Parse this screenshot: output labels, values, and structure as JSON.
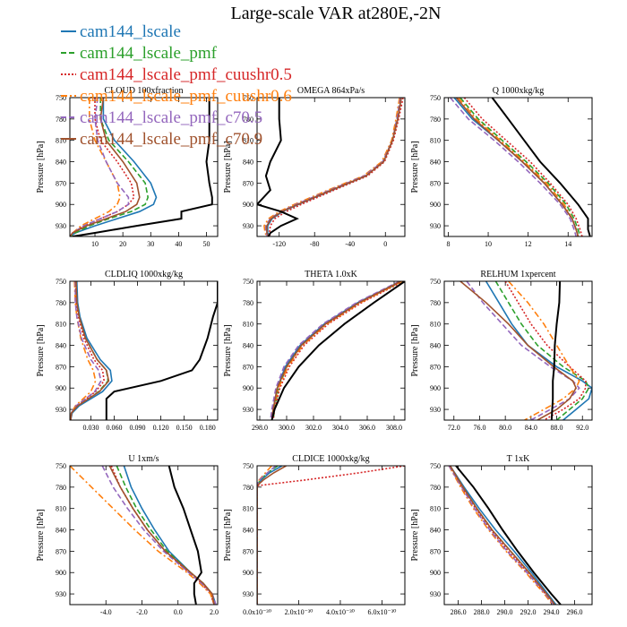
{
  "figure": {
    "title": "Large-scale VAR at280E,-2N",
    "ylabel": "Pressure [hPa]",
    "yticks": [
      750,
      780,
      810,
      840,
      870,
      900,
      930
    ],
    "ylim": [
      750,
      945
    ]
  },
  "legend": [
    {
      "name": "cam144_lscale",
      "color": "#1f77b4",
      "style": "solid"
    },
    {
      "name": "cam144_lscale_pmf",
      "color": "#2ca02c",
      "style": "dashed"
    },
    {
      "name": "cam144_lscale_pmf_cuushr0.5",
      "color": "#d62728",
      "style": "dotted"
    },
    {
      "name": "cam144_lscale_pmf_cuushr0.6",
      "color": "#ff7f0e",
      "style": "dashdot"
    },
    {
      "name": "cam144_lscale_pmf_c70.5",
      "color": "#9467bd",
      "style": "dashed"
    },
    {
      "name": "cam144_lscale_pmf_c70.9",
      "color": "#a0522d",
      "style": "solid"
    }
  ],
  "obs_color": "#000000",
  "chart_data": [
    {
      "type": "line",
      "title": "CLOUD  100xfraction",
      "xlim": [
        1,
        54
      ],
      "xticks": [
        {
          "v": 10,
          "label": "10"
        },
        {
          "v": 20,
          "label": "20"
        },
        {
          "v": 30,
          "label": "30"
        },
        {
          "v": 40,
          "label": "40"
        },
        {
          "v": 50,
          "label": "50"
        }
      ],
      "p": [
        750,
        780,
        810,
        840,
        870,
        890,
        900,
        910,
        920,
        930,
        940,
        945
      ],
      "obs": [
        51,
        51,
        51,
        50,
        51,
        52,
        52,
        41,
        41,
        25,
        10,
        2
      ],
      "series": [
        [
          13,
          13,
          17,
          24,
          30,
          32,
          31,
          26,
          18,
          10,
          3,
          1
        ],
        [
          12,
          12,
          15,
          22,
          28,
          29,
          28,
          23,
          15,
          8,
          3,
          1
        ],
        [
          10,
          10,
          12,
          18,
          23,
          24,
          22,
          18,
          12,
          6,
          2,
          1
        ],
        [
          8,
          8,
          10,
          14,
          18,
          19,
          18,
          15,
          10,
          5,
          2,
          1
        ],
        [
          11,
          10,
          11,
          14,
          18,
          22,
          22,
          18,
          12,
          6,
          2,
          1
        ],
        [
          13,
          12,
          14,
          20,
          25,
          26,
          25,
          21,
          14,
          7,
          2,
          1
        ]
      ]
    },
    {
      "type": "line",
      "title": "OMEGA  864xPa/s",
      "xlim": [
        -145,
        22
      ],
      "xticks": [
        {
          "v": -120,
          "label": "-120"
        },
        {
          "v": -80,
          "label": "-80"
        },
        {
          "v": -40,
          "label": "-40"
        },
        {
          "v": 0,
          "label": "0"
        }
      ],
      "p": [
        750,
        780,
        810,
        840,
        860,
        880,
        900,
        910,
        920,
        930,
        940,
        945
      ],
      "obs": [
        -120,
        -120,
        -118,
        -130,
        -135,
        -130,
        -145,
        -118,
        -100,
        -118,
        -130,
        -132
      ],
      "series": [
        [
          18,
          14,
          8,
          -2,
          -22,
          -60,
          -98,
          -116,
          -128,
          -133,
          -133,
          -131
        ],
        [
          17,
          13,
          8,
          -3,
          -23,
          -62,
          -100,
          -118,
          -130,
          -135,
          -135,
          -133
        ],
        [
          20,
          15,
          9,
          -1,
          -20,
          -58,
          -95,
          -112,
          -125,
          -130,
          -131,
          -130
        ],
        [
          16,
          12,
          7,
          -4,
          -25,
          -65,
          -103,
          -120,
          -132,
          -137,
          -136,
          -134
        ],
        [
          17,
          13,
          8,
          -3,
          -24,
          -63,
          -101,
          -118,
          -130,
          -135,
          -135,
          -133
        ],
        [
          18,
          14,
          8,
          -2,
          -22,
          -61,
          -99,
          -117,
          -129,
          -134,
          -134,
          -132
        ]
      ]
    },
    {
      "type": "line",
      "title": "Q  1000xkg/kg",
      "xlim": [
        7.8,
        15.2
      ],
      "xticks": [
        {
          "v": 8,
          "label": "8"
        },
        {
          "v": 10,
          "label": "10"
        },
        {
          "v": 12,
          "label": "12"
        },
        {
          "v": 14,
          "label": "14"
        }
      ],
      "p": [
        750,
        780,
        810,
        840,
        870,
        900,
        920,
        935,
        945
      ],
      "obs": [
        10.2,
        11,
        11.8,
        12.6,
        13.6,
        14.5,
        15,
        15,
        15.1
      ],
      "series": [
        [
          8.3,
          9.2,
          10.5,
          11.7,
          12.8,
          13.7,
          14.2,
          14.4,
          14.5
        ],
        [
          8.6,
          9.5,
          10.7,
          11.9,
          13,
          13.9,
          14.3,
          14.5,
          14.6
        ],
        [
          8.8,
          9.7,
          10.9,
          12.1,
          13.1,
          14,
          14.4,
          14.6,
          14.7
        ],
        [
          8.5,
          9.4,
          10.6,
          11.8,
          12.9,
          13.8,
          14.2,
          14.4,
          14.5
        ],
        [
          8.1,
          9,
          10.3,
          11.5,
          12.6,
          13.6,
          14.1,
          14.3,
          14.4
        ],
        [
          8.4,
          9.3,
          10.5,
          11.7,
          12.8,
          13.7,
          14.2,
          14.4,
          14.5
        ]
      ]
    },
    {
      "type": "line",
      "title": "CLDLIQ  1000xkg/kg",
      "xlim": [
        0.003,
        0.193
      ],
      "xticks": [
        {
          "v": 0.03,
          "label": "0.030"
        },
        {
          "v": 0.06,
          "label": "0.060"
        },
        {
          "v": 0.09,
          "label": "0.090"
        },
        {
          "v": 0.12,
          "label": "0.120"
        },
        {
          "v": 0.15,
          "label": "0.150"
        },
        {
          "v": 0.18,
          "label": "0.180"
        }
      ],
      "p": [
        750,
        780,
        800,
        830,
        860,
        875,
        890,
        905,
        915,
        925,
        935,
        945
      ],
      "obs": [
        0.193,
        0.193,
        0.187,
        0.18,
        0.17,
        0.16,
        0.12,
        0.06,
        0.05,
        0.05,
        0.05,
        0.05
      ],
      "series": [
        [
          0.012,
          0.013,
          0.016,
          0.025,
          0.042,
          0.055,
          0.057,
          0.045,
          0.03,
          0.015,
          0.006,
          0.004
        ],
        [
          0.011,
          0.012,
          0.015,
          0.023,
          0.038,
          0.05,
          0.052,
          0.04,
          0.027,
          0.013,
          0.005,
          0.004
        ],
        [
          0.01,
          0.011,
          0.014,
          0.021,
          0.034,
          0.045,
          0.047,
          0.036,
          0.024,
          0.011,
          0.005,
          0.004
        ],
        [
          0.009,
          0.01,
          0.012,
          0.017,
          0.026,
          0.033,
          0.036,
          0.03,
          0.02,
          0.01,
          0.005,
          0.004
        ],
        [
          0.01,
          0.01,
          0.012,
          0.018,
          0.03,
          0.04,
          0.043,
          0.035,
          0.023,
          0.011,
          0.005,
          0.004
        ],
        [
          0.011,
          0.012,
          0.015,
          0.023,
          0.038,
          0.05,
          0.053,
          0.041,
          0.027,
          0.013,
          0.005,
          0.004
        ]
      ]
    },
    {
      "type": "line",
      "title": "THETA  1.0xK",
      "xlim": [
        297.8,
        308.8
      ],
      "xticks": [
        {
          "v": 298,
          "label": "298.0"
        },
        {
          "v": 300,
          "label": "300.0"
        },
        {
          "v": 302,
          "label": "302.0"
        },
        {
          "v": 304,
          "label": "304.0"
        },
        {
          "v": 306,
          "label": "306.0"
        },
        {
          "v": 308,
          "label": "308.0"
        }
      ],
      "p": [
        750,
        780,
        810,
        840,
        870,
        900,
        930,
        945
      ],
      "obs": [
        308.8,
        306.5,
        304.3,
        302.4,
        300.9,
        299.8,
        299.1,
        298.9
      ],
      "series": [
        [
          308.5,
          305.3,
          302.8,
          301,
          299.9,
          299.3,
          299,
          298.9
        ],
        [
          308.6,
          305.4,
          302.9,
          301.1,
          300,
          299.4,
          299.1,
          299
        ],
        [
          308.7,
          305.6,
          303.1,
          301.3,
          300.2,
          299.5,
          299.1,
          299
        ],
        [
          308.6,
          305.5,
          303,
          301.2,
          300.1,
          299.4,
          299,
          298.9
        ],
        [
          308.4,
          305.2,
          302.7,
          300.9,
          299.8,
          299.2,
          298.9,
          298.8
        ],
        [
          308.5,
          305.4,
          302.9,
          301.1,
          300,
          299.3,
          299,
          298.9
        ]
      ]
    },
    {
      "type": "line",
      "title": "RELHUM  1xpercent",
      "xlim": [
        70.5,
        93.5
      ],
      "xticks": [
        {
          "v": 72,
          "label": "72.0"
        },
        {
          "v": 76,
          "label": "76.0"
        },
        {
          "v": 80,
          "label": "80.0"
        },
        {
          "v": 84,
          "label": "84.0"
        },
        {
          "v": 88,
          "label": "88.0"
        },
        {
          "v": 92,
          "label": "92.0"
        }
      ],
      "p": [
        750,
        780,
        810,
        840,
        870,
        890,
        900,
        915,
        930,
        945
      ],
      "obs": [
        88.5,
        88.4,
        88,
        87.7,
        87.6,
        87.4,
        87.4,
        87.4,
        87.3,
        87.2
      ],
      "series": [
        [
          77,
          79,
          81,
          83.5,
          88,
          92,
          93.5,
          93,
          91,
          89
        ],
        [
          78.5,
          80.5,
          82.5,
          85,
          89,
          92.5,
          93,
          92,
          90,
          88
        ],
        [
          80,
          82,
          84,
          86.5,
          90,
          92.5,
          92.5,
          91.5,
          89,
          86
        ],
        [
          80.5,
          83.5,
          86,
          88,
          90,
          91.5,
          91,
          89,
          86,
          83
        ],
        [
          74,
          76.5,
          79.5,
          82.5,
          87,
          90.5,
          91.5,
          90,
          87,
          84
        ],
        [
          73,
          77,
          80.5,
          83.5,
          87.5,
          90.5,
          91,
          90,
          88,
          85
        ]
      ]
    },
    {
      "type": "line",
      "title": "U  1xm/s",
      "xlim": [
        -6,
        2.2
      ],
      "xticks": [
        {
          "v": -4,
          "label": "-4.0"
        },
        {
          "v": -2,
          "label": "-2.0"
        },
        {
          "v": 0,
          "label": "0.0"
        },
        {
          "v": 2,
          "label": "2.0"
        }
      ],
      "p": [
        750,
        780,
        810,
        840,
        870,
        900,
        915,
        930,
        945
      ],
      "obs": [
        -0.5,
        -0.2,
        0.3,
        0.7,
        1.1,
        1.3,
        0.9,
        0.9,
        1.0
      ],
      "series": [
        [
          -3,
          -2.6,
          -2,
          -1.3,
          -0.5,
          0.7,
          1.4,
          1.9,
          2.1
        ],
        [
          -3.4,
          -2.9,
          -2.3,
          -1.5,
          -0.6,
          0.7,
          1.4,
          1.9,
          2
        ],
        [
          -3.7,
          -3.2,
          -2.5,
          -1.7,
          -0.7,
          0.6,
          1.3,
          1.8,
          2
        ],
        [
          -6,
          -4.8,
          -3.6,
          -2.4,
          -1.1,
          0.5,
          1.2,
          1.8,
          2
        ],
        [
          -4.2,
          -3.6,
          -2.8,
          -1.9,
          -0.8,
          0.6,
          1.3,
          1.9,
          2.1
        ],
        [
          -3.8,
          -3.2,
          -2.5,
          -1.7,
          -0.7,
          0.7,
          1.4,
          1.9,
          2
        ]
      ]
    },
    {
      "type": "line",
      "title": "CLDICE  1000xkg/kg",
      "xlim": [
        0,
        7.1e-30
      ],
      "xticks": [
        {
          "v": 0,
          "label": "0.0x10⁻³⁰"
        },
        {
          "v": 2e-30,
          "label": "2.0x10⁻³⁰"
        },
        {
          "v": 4e-30,
          "label": "4.0x10⁻³⁰"
        },
        {
          "v": 6e-30,
          "label": "6.0x10⁻³⁰"
        }
      ],
      "p": [
        750,
        760,
        770,
        778,
        945
      ],
      "obs": null,
      "series": [
        [
          1.2e-30,
          6e-31,
          2e-31,
          0,
          0
        ],
        [
          1e-30,
          5e-31,
          1.5e-31,
          0,
          0
        ],
        [
          7.1e-30,
          4.9e-30,
          2.3e-30,
          0,
          0
        ],
        [
          7e-31,
          4e-31,
          1e-31,
          0,
          0
        ],
        [
          9e-31,
          5e-31,
          1e-31,
          0,
          0
        ],
        [
          1.4e-30,
          8e-31,
          3e-31,
          0,
          0
        ]
      ]
    },
    {
      "type": "line",
      "title": "T  1xK",
      "xlim": [
        284.8,
        297.5
      ],
      "xticks": [
        {
          "v": 286,
          "label": "286.0"
        },
        {
          "v": 288,
          "label": "288.0"
        },
        {
          "v": 290,
          "label": "290.0"
        },
        {
          "v": 292,
          "label": "292.0"
        },
        {
          "v": 294,
          "label": "294.0"
        },
        {
          "v": 296,
          "label": "296.0"
        }
      ],
      "p": [
        750,
        780,
        810,
        840,
        870,
        900,
        930,
        945
      ],
      "obs": [
        285.8,
        287.3,
        288.6,
        289.8,
        291.1,
        292.5,
        294,
        294.8
      ],
      "series": [
        [
          285.3,
          286.5,
          287.8,
          289.2,
          290.8,
          292.3,
          293.7,
          294.4
        ],
        [
          285.3,
          286.4,
          287.6,
          288.9,
          290.5,
          292.1,
          293.6,
          294.3
        ],
        [
          285.3,
          286.3,
          287.5,
          288.8,
          290.3,
          292,
          293.5,
          294.2
        ],
        [
          285.2,
          286.2,
          287.3,
          288.6,
          290.1,
          291.8,
          293.4,
          294.1
        ],
        [
          285.2,
          286.3,
          287.4,
          288.7,
          290.2,
          291.9,
          293.5,
          294.2
        ],
        [
          285.3,
          286.4,
          287.6,
          288.9,
          290.5,
          292.1,
          293.6,
          294.3
        ]
      ]
    }
  ]
}
